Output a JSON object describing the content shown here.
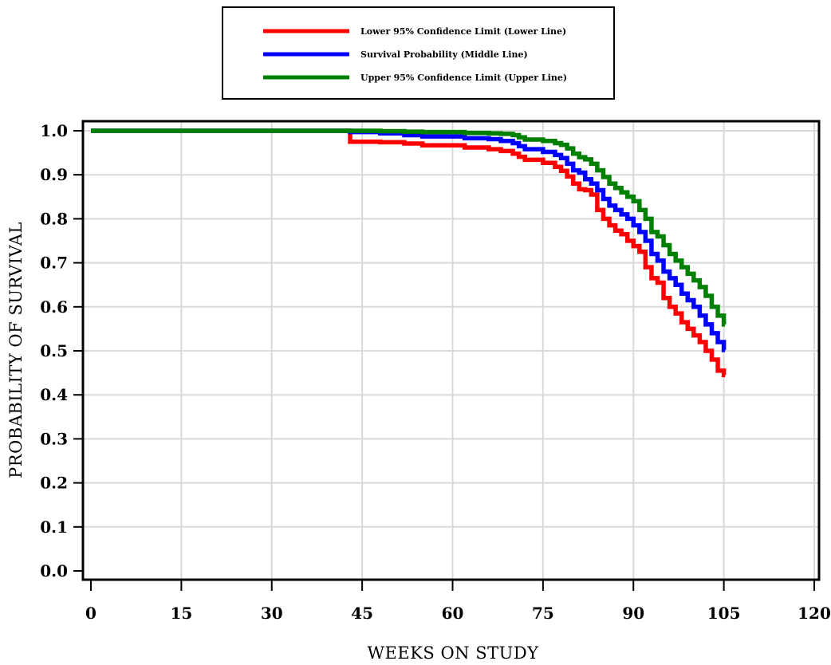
{
  "chart_data": {
    "type": "line",
    "step": true,
    "xlabel": "WEEKS ON STUDY",
    "ylabel": "PROBABILITY OF SURVIVAL",
    "xlim": [
      0,
      120
    ],
    "ylim": [
      0.0,
      1.0
    ],
    "xticks": [
      0,
      15,
      30,
      45,
      60,
      75,
      90,
      105,
      120
    ],
    "xtick_labels": [
      "0",
      "15",
      "30",
      "45",
      "60",
      "75",
      "90",
      "105",
      "120"
    ],
    "yticks": [
      0.0,
      0.1,
      0.2,
      0.3,
      0.4,
      0.5,
      0.6,
      0.7,
      0.8,
      0.9,
      1.0
    ],
    "ytick_labels": [
      "0.0",
      "0.1",
      "0.2",
      "0.3",
      "0.4",
      "0.5",
      "0.6",
      "0.7",
      "0.8",
      "0.9",
      "1.0"
    ],
    "grid": true,
    "legend_position": "top-center",
    "series": [
      {
        "name": "Lower 95% Confidence Limit (Lower Line)",
        "color": "#ff0000",
        "x": [
          0,
          43,
          48,
          52,
          55,
          62,
          66,
          68,
          70,
          71,
          72,
          75,
          77,
          78,
          79,
          80,
          81,
          82,
          83,
          84,
          85,
          86,
          87,
          88,
          89,
          90,
          91,
          92,
          93,
          94,
          95,
          96,
          97,
          98,
          99,
          100,
          101,
          102,
          103,
          104,
          105
        ],
        "y": [
          1.0,
          0.975,
          0.974,
          0.971,
          0.967,
          0.962,
          0.958,
          0.954,
          0.948,
          0.941,
          0.934,
          0.927,
          0.918,
          0.909,
          0.896,
          0.88,
          0.867,
          0.865,
          0.855,
          0.82,
          0.8,
          0.785,
          0.773,
          0.765,
          0.75,
          0.738,
          0.725,
          0.69,
          0.665,
          0.655,
          0.62,
          0.6,
          0.585,
          0.565,
          0.55,
          0.535,
          0.52,
          0.5,
          0.48,
          0.455,
          0.445
        ]
      },
      {
        "name": "Survival Probability (Middle Line)",
        "color": "#0000ff",
        "x": [
          0,
          43,
          48,
          52,
          55,
          62,
          66,
          68,
          70,
          71,
          72,
          75,
          77,
          78,
          79,
          80,
          81,
          82,
          83,
          84,
          85,
          86,
          87,
          88,
          89,
          90,
          91,
          92,
          93,
          94,
          95,
          96,
          97,
          98,
          99,
          100,
          101,
          102,
          103,
          104,
          105
        ],
        "y": [
          1.0,
          0.997,
          0.994,
          0.99,
          0.987,
          0.983,
          0.981,
          0.977,
          0.972,
          0.965,
          0.958,
          0.952,
          0.945,
          0.938,
          0.925,
          0.91,
          0.905,
          0.89,
          0.88,
          0.865,
          0.845,
          0.83,
          0.82,
          0.81,
          0.8,
          0.785,
          0.77,
          0.75,
          0.72,
          0.705,
          0.68,
          0.665,
          0.65,
          0.63,
          0.615,
          0.6,
          0.58,
          0.56,
          0.54,
          0.52,
          0.502
        ]
      },
      {
        "name": "Upper 95% Confidence Limit (Upper Line)",
        "color": "#008000",
        "x": [
          0,
          43,
          48,
          52,
          55,
          62,
          66,
          68,
          70,
          71,
          72,
          75,
          77,
          78,
          79,
          80,
          81,
          82,
          83,
          84,
          85,
          86,
          87,
          88,
          89,
          90,
          91,
          92,
          93,
          94,
          95,
          96,
          97,
          98,
          99,
          100,
          101,
          102,
          103,
          104,
          105
        ],
        "y": [
          1.0,
          1.0,
          0.999,
          0.998,
          0.997,
          0.995,
          0.994,
          0.993,
          0.99,
          0.985,
          0.98,
          0.977,
          0.972,
          0.968,
          0.96,
          0.948,
          0.94,
          0.935,
          0.925,
          0.91,
          0.895,
          0.88,
          0.87,
          0.86,
          0.85,
          0.84,
          0.82,
          0.8,
          0.77,
          0.76,
          0.74,
          0.72,
          0.705,
          0.69,
          0.675,
          0.66,
          0.645,
          0.625,
          0.6,
          0.58,
          0.56
        ]
      }
    ]
  }
}
